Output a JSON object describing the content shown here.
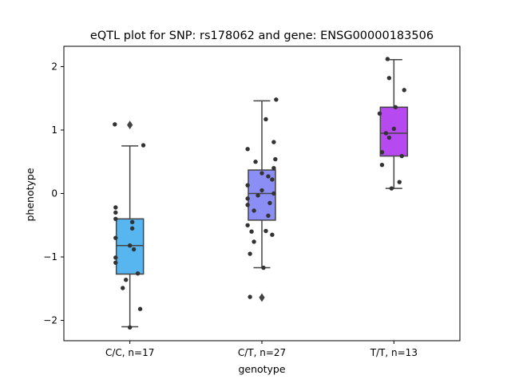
{
  "chart_data": {
    "type": "box",
    "title": "eQTL plot for SNP: rs178062 and gene: ENSG00000183506",
    "xlabel": "genotype",
    "ylabel": "phenotype",
    "ylim": [
      -2.32,
      2.32
    ],
    "yticks": [
      2,
      1,
      0,
      -1,
      -2
    ],
    "ytick_labels": [
      "2",
      "1",
      "0",
      "−1",
      "−2"
    ],
    "grid": false,
    "legend": "none",
    "categories": [
      "C/C, n=17",
      "C/T, n=27",
      "T/T, n=13"
    ],
    "colors": [
      "#57b5ef",
      "#8b8ef5",
      "#b64af0"
    ],
    "point_color": "#333333",
    "line_color": "#444444",
    "boxes": [
      {
        "category": "C/C, n=17",
        "whisker_low": -2.1,
        "q1": -1.27,
        "median": -0.82,
        "q3": -0.4,
        "whisker_high": 0.75,
        "outliers": [
          1.08
        ]
      },
      {
        "category": "C/T, n=27",
        "whisker_low": -1.17,
        "q1": -0.42,
        "median": 0.0,
        "q3": 0.37,
        "whisker_high": 1.46,
        "outliers": [
          -1.64
        ]
      },
      {
        "category": "T/T, n=13",
        "whisker_low": 0.08,
        "q1": 0.59,
        "median": 0.95,
        "q3": 1.36,
        "whisker_high": 2.11,
        "outliers": []
      }
    ],
    "points": [
      [
        [
          -0.19,
          1.09
        ],
        [
          0.17,
          0.76
        ],
        [
          0.0,
          -0.82
        ],
        [
          -0.18,
          -0.22
        ],
        [
          -0.18,
          -0.3
        ],
        [
          -0.18,
          -0.4
        ],
        [
          0.03,
          -0.45
        ],
        [
          0.03,
          -0.55
        ],
        [
          -0.18,
          -0.7
        ],
        [
          0.05,
          -0.88
        ],
        [
          -0.18,
          -1.01
        ],
        [
          -0.18,
          -1.09
        ],
        [
          0.1,
          -1.26
        ],
        [
          -0.05,
          -1.36
        ],
        [
          -0.09,
          -1.49
        ],
        [
          0.13,
          -1.82
        ],
        [
          0.0,
          -2.11
        ]
      ],
      [
        [
          0.18,
          1.48
        ],
        [
          0.05,
          1.17
        ],
        [
          0.15,
          0.81
        ],
        [
          -0.18,
          0.7
        ],
        [
          -0.08,
          0.5
        ],
        [
          0.17,
          0.54
        ],
        [
          0.0,
          0.32
        ],
        [
          0.08,
          0.27
        ],
        [
          0.13,
          0.22
        ],
        [
          0.15,
          0.4
        ],
        [
          -0.18,
          0.13
        ],
        [
          0.0,
          0.05
        ],
        [
          0.15,
          0.0
        ],
        [
          -0.05,
          -0.03
        ],
        [
          -0.18,
          -0.08
        ],
        [
          0.1,
          -0.15
        ],
        [
          -0.18,
          -0.18
        ],
        [
          -0.1,
          -0.27
        ],
        [
          0.08,
          -0.35
        ],
        [
          -0.18,
          -0.5
        ],
        [
          -0.13,
          -0.6
        ],
        [
          0.05,
          -0.59
        ],
        [
          0.13,
          -0.65
        ],
        [
          -0.1,
          -0.76
        ],
        [
          -0.15,
          -0.95
        ],
        [
          0.02,
          -1.17
        ],
        [
          -0.15,
          -1.63
        ]
      ],
      [
        [
          -0.08,
          2.12
        ],
        [
          -0.06,
          1.82
        ],
        [
          0.13,
          1.63
        ],
        [
          0.02,
          1.36
        ],
        [
          -0.18,
          1.26
        ],
        [
          0.0,
          1.02
        ],
        [
          -0.1,
          0.95
        ],
        [
          -0.06,
          0.88
        ],
        [
          -0.15,
          0.65
        ],
        [
          0.1,
          0.59
        ],
        [
          -0.15,
          0.45
        ],
        [
          0.07,
          0.18
        ],
        [
          -0.03,
          0.08
        ]
      ]
    ]
  }
}
